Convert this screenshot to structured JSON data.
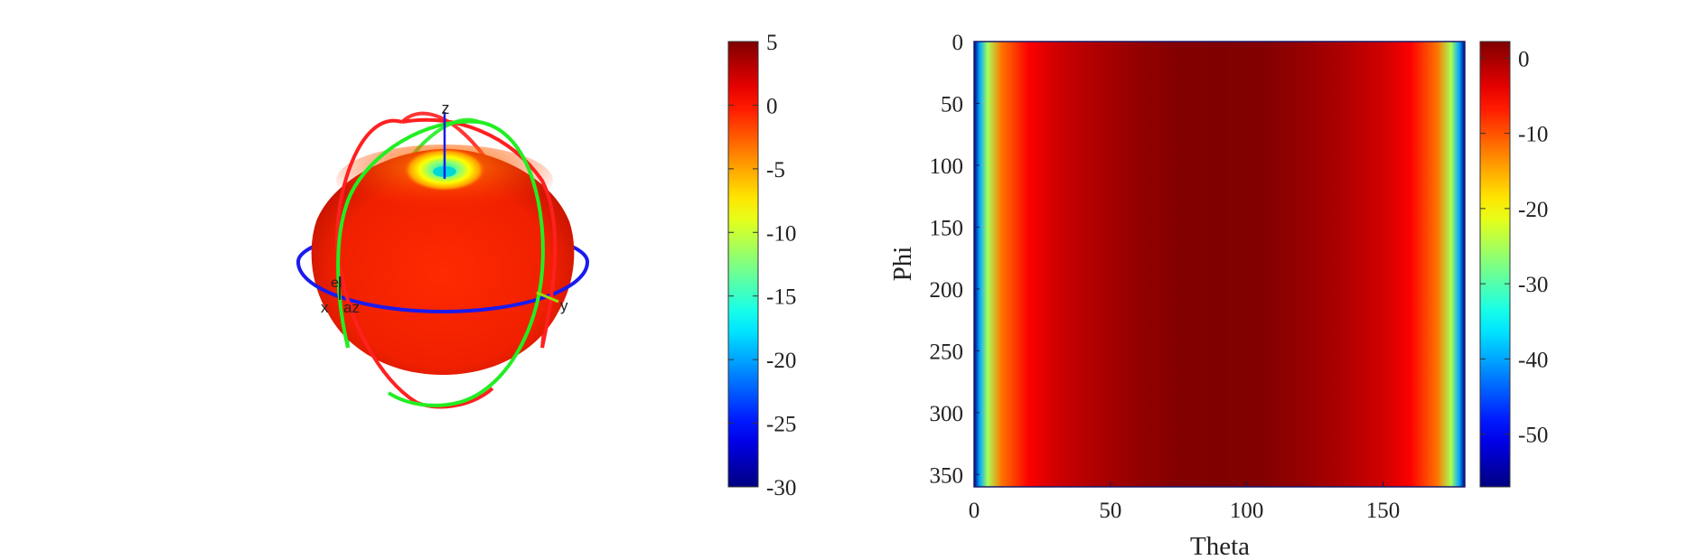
{
  "chart_data": [
    {
      "type": "surface3d",
      "title": "",
      "axis_labels": {
        "z": "z",
        "x": "x",
        "y": "y",
        "el": "el",
        "az": "az"
      },
      "description_scale": "gain colored by value",
      "colorbar": {
        "colormap": "jet",
        "range": [
          -30,
          5
        ],
        "ticks": [
          5,
          0,
          -5,
          -10,
          -15,
          -20,
          -25,
          -30
        ],
        "tick_labels": [
          "5",
          "0",
          "-5",
          "-10",
          "-15",
          "-20",
          "-25",
          "-30"
        ]
      },
      "great_circles": [
        {
          "plane": "azimuth",
          "color": "#0000ff"
        },
        {
          "plane": "elevation-xz",
          "color": "#ff0000"
        },
        {
          "plane": "elevation-yz",
          "color": "#00ff00"
        }
      ]
    },
    {
      "type": "heatmap",
      "title": "",
      "xlabel": "Theta",
      "ylabel": "Phi",
      "xlim": [
        0,
        180
      ],
      "ylim": [
        0,
        360
      ],
      "y_reversed": true,
      "xticks": [
        0,
        50,
        100,
        150
      ],
      "xtick_labels": [
        "0",
        "50",
        "100",
        "150"
      ],
      "yticks": [
        0,
        50,
        100,
        150,
        200,
        250,
        300,
        350
      ],
      "ytick_labels": [
        "0",
        "50",
        "100",
        "150",
        "200",
        "250",
        "300",
        "350"
      ],
      "profile_theta": [
        0,
        2,
        5,
        10,
        20,
        30,
        45,
        60,
        75,
        90,
        105,
        120,
        135,
        150,
        160,
        170,
        175,
        178,
        180
      ],
      "profile_values": [
        -57,
        -40,
        -25,
        -12,
        -5,
        -2.5,
        -0.5,
        1,
        2,
        2.2,
        2,
        1,
        -0.5,
        -2.5,
        -5,
        -12,
        -25,
        -40,
        -57
      ],
      "colorbar": {
        "colormap": "jet",
        "range": [
          -57,
          2.2
        ],
        "ticks": [
          0,
          -10,
          -20,
          -30,
          -40,
          -50
        ],
        "tick_labels": [
          "0",
          "-10",
          "-20",
          "-30",
          "-40",
          "-50"
        ]
      }
    }
  ]
}
